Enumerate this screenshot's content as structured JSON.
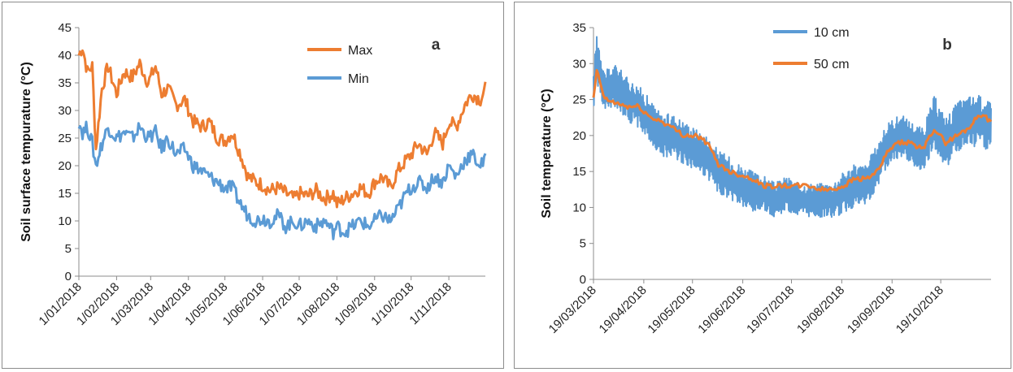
{
  "colors": {
    "orange": "#ED7D31",
    "blue": "#5B9BD5",
    "axis": "#8c8c8c"
  },
  "chart_data": [
    {
      "panel_label": "a",
      "type": "line",
      "ylabel": "Soil surface tempurature (°C)",
      "xlabel": "",
      "ylim": [
        0,
        45
      ],
      "yticks": [
        0,
        5,
        10,
        15,
        20,
        25,
        30,
        35,
        40,
        45
      ],
      "xlim": [
        "2018-01-01",
        "2018-12-01"
      ],
      "xtick_labels": [
        "1/01/2018",
        "1/02/2018",
        "1/03/2018",
        "1/04/2018",
        "1/05/2018",
        "1/06/2018",
        "1/07/2018",
        "1/08/2018",
        "1/09/2018",
        "1/10/2018",
        "1/11/2018"
      ],
      "xticks": [
        "2018-01-01",
        "2018-02-01",
        "2018-03-01",
        "2018-04-01",
        "2018-05-01",
        "2018-06-01",
        "2018-07-01",
        "2018-08-01",
        "2018-09-01",
        "2018-10-01",
        "2018-11-01"
      ],
      "legend": "top-right",
      "grid": false,
      "series": [
        {
          "name": "Max",
          "color": "#ED7D31",
          "x": [
            "2018-01-01",
            "2018-01-04",
            "2018-01-08",
            "2018-01-12",
            "2018-01-15",
            "2018-01-20",
            "2018-01-25",
            "2018-02-01",
            "2018-02-07",
            "2018-02-14",
            "2018-02-20",
            "2018-02-27",
            "2018-03-05",
            "2018-03-10",
            "2018-03-15",
            "2018-03-22",
            "2018-03-29",
            "2018-04-05",
            "2018-04-12",
            "2018-04-18",
            "2018-04-25",
            "2018-05-01",
            "2018-05-07",
            "2018-05-14",
            "2018-05-20",
            "2018-05-27",
            "2018-06-01",
            "2018-06-07",
            "2018-06-14",
            "2018-06-20",
            "2018-06-27",
            "2018-07-01",
            "2018-07-08",
            "2018-07-15",
            "2018-07-22",
            "2018-07-29",
            "2018-08-01",
            "2018-08-07",
            "2018-08-14",
            "2018-08-20",
            "2018-08-27",
            "2018-09-01",
            "2018-09-07",
            "2018-09-14",
            "2018-09-20",
            "2018-09-27",
            "2018-10-01",
            "2018-10-07",
            "2018-10-14",
            "2018-10-20",
            "2018-10-27",
            "2018-11-01",
            "2018-11-07",
            "2018-11-14",
            "2018-11-20",
            "2018-11-27",
            "2018-12-01"
          ],
          "values": [
            40,
            41.5,
            37,
            38,
            23,
            34,
            38,
            33,
            37,
            36,
            38.5,
            35,
            38,
            33,
            34,
            31,
            32,
            28,
            27,
            28,
            25,
            24.5,
            26,
            22,
            18,
            17,
            16.5,
            15.5,
            16,
            15,
            14,
            15,
            14.5,
            15.5,
            14,
            15,
            13,
            14,
            15,
            16,
            15,
            17,
            18,
            16,
            19,
            21,
            22,
            24,
            22,
            26,
            24,
            28,
            27,
            31,
            33,
            32,
            34
          ]
        },
        {
          "name": "Min",
          "color": "#5B9BD5",
          "x": [
            "2018-01-01",
            "2018-01-04",
            "2018-01-08",
            "2018-01-12",
            "2018-01-15",
            "2018-01-20",
            "2018-01-25",
            "2018-02-01",
            "2018-02-07",
            "2018-02-14",
            "2018-02-20",
            "2018-02-27",
            "2018-03-05",
            "2018-03-10",
            "2018-03-15",
            "2018-03-22",
            "2018-03-29",
            "2018-04-05",
            "2018-04-12",
            "2018-04-18",
            "2018-04-25",
            "2018-05-01",
            "2018-05-07",
            "2018-05-14",
            "2018-05-20",
            "2018-05-27",
            "2018-06-01",
            "2018-06-07",
            "2018-06-14",
            "2018-06-20",
            "2018-06-27",
            "2018-07-01",
            "2018-07-08",
            "2018-07-15",
            "2018-07-22",
            "2018-07-29",
            "2018-08-01",
            "2018-08-07",
            "2018-08-14",
            "2018-08-20",
            "2018-08-27",
            "2018-09-01",
            "2018-09-07",
            "2018-09-14",
            "2018-09-20",
            "2018-09-27",
            "2018-10-01",
            "2018-10-07",
            "2018-10-14",
            "2018-10-20",
            "2018-10-27",
            "2018-11-01",
            "2018-11-07",
            "2018-11-14",
            "2018-11-20",
            "2018-11-27",
            "2018-12-01"
          ],
          "values": [
            28,
            26,
            27,
            24,
            20,
            24,
            27,
            25,
            26,
            25,
            27,
            25,
            26,
            23,
            25,
            22,
            23,
            20,
            19,
            18,
            17,
            16,
            16,
            13,
            11,
            10,
            10.5,
            10,
            11,
            9,
            10,
            9,
            10,
            9,
            10,
            8,
            9,
            8,
            9,
            10,
            9,
            10,
            11,
            10,
            12,
            15,
            16,
            17,
            16,
            18,
            17,
            20,
            18,
            21,
            22,
            20,
            21
          ]
        }
      ]
    },
    {
      "panel_label": "b",
      "type": "line",
      "ylabel": "Soil temperature (°C)",
      "xlabel": "",
      "ylim": [
        0,
        35
      ],
      "yticks": [
        0,
        5,
        10,
        15,
        20,
        25,
        30,
        35
      ],
      "xlim": [
        "2018-03-19",
        "2018-11-19"
      ],
      "xtick_labels": [
        "19/03/2018",
        "19/04/2018",
        "19/05/2018",
        "19/06/2018",
        "19/07/2018",
        "19/08/2018",
        "19/09/2018",
        "19/10/2018"
      ],
      "xticks": [
        "2018-03-19",
        "2018-04-19",
        "2018-05-19",
        "2018-06-19",
        "2018-07-19",
        "2018-08-19",
        "2018-09-19",
        "2018-10-19"
      ],
      "legend": "top-right",
      "grid": false,
      "series": [
        {
          "name": "10 cm",
          "color": "#5B9BD5",
          "x": [
            "2018-03-19",
            "2018-03-21",
            "2018-03-26",
            "2018-04-02",
            "2018-04-09",
            "2018-04-16",
            "2018-04-23",
            "2018-04-30",
            "2018-05-07",
            "2018-05-14",
            "2018-05-21",
            "2018-05-28",
            "2018-06-04",
            "2018-06-11",
            "2018-06-18",
            "2018-06-25",
            "2018-07-02",
            "2018-07-09",
            "2018-07-16",
            "2018-07-23",
            "2018-07-30",
            "2018-08-06",
            "2018-08-13",
            "2018-08-20",
            "2018-08-27",
            "2018-09-03",
            "2018-09-10",
            "2018-09-17",
            "2018-09-24",
            "2018-10-01",
            "2018-10-08",
            "2018-10-15",
            "2018-10-22",
            "2018-10-29",
            "2018-11-05",
            "2018-11-12",
            "2018-11-19"
          ],
          "values": [
            26,
            31,
            26,
            27,
            25,
            24,
            22,
            20,
            20,
            19,
            18,
            17,
            15,
            14,
            13,
            12,
            12,
            11,
            12,
            11,
            11,
            11,
            11,
            12,
            13,
            13,
            16,
            19,
            20,
            19,
            18,
            22,
            19,
            21,
            22,
            22,
            21
          ],
          "band": [
            4,
            6,
            5,
            5,
            5,
            5,
            5,
            5,
            5,
            5,
            5,
            5,
            5,
            5,
            5,
            5,
            4,
            4,
            4,
            4,
            4,
            4,
            4,
            5,
            5,
            5,
            5,
            5,
            5,
            5,
            5,
            6,
            6,
            6,
            6,
            6,
            6
          ]
        },
        {
          "name": "50 cm",
          "color": "#ED7D31",
          "x": [
            "2018-03-19",
            "2018-03-21",
            "2018-03-26",
            "2018-04-02",
            "2018-04-09",
            "2018-04-16",
            "2018-04-23",
            "2018-04-30",
            "2018-05-07",
            "2018-05-14",
            "2018-05-21",
            "2018-05-28",
            "2018-06-04",
            "2018-06-11",
            "2018-06-18",
            "2018-06-25",
            "2018-07-02",
            "2018-07-09",
            "2018-07-16",
            "2018-07-23",
            "2018-07-30",
            "2018-08-06",
            "2018-08-13",
            "2018-08-20",
            "2018-08-27",
            "2018-09-03",
            "2018-09-10",
            "2018-09-17",
            "2018-09-24",
            "2018-10-01",
            "2018-10-08",
            "2018-10-15",
            "2018-10-22",
            "2018-10-29",
            "2018-11-05",
            "2018-11-12",
            "2018-11-19"
          ],
          "values": [
            25,
            29,
            25,
            24.5,
            24,
            24,
            22.5,
            22,
            21,
            20,
            20,
            19,
            16,
            15,
            14.5,
            14,
            13,
            13,
            13,
            13,
            13,
            12.5,
            12.5,
            13,
            14,
            14,
            15,
            18,
            19,
            19,
            18,
            21,
            19,
            20,
            21,
            23,
            22
          ]
        }
      ]
    }
  ]
}
